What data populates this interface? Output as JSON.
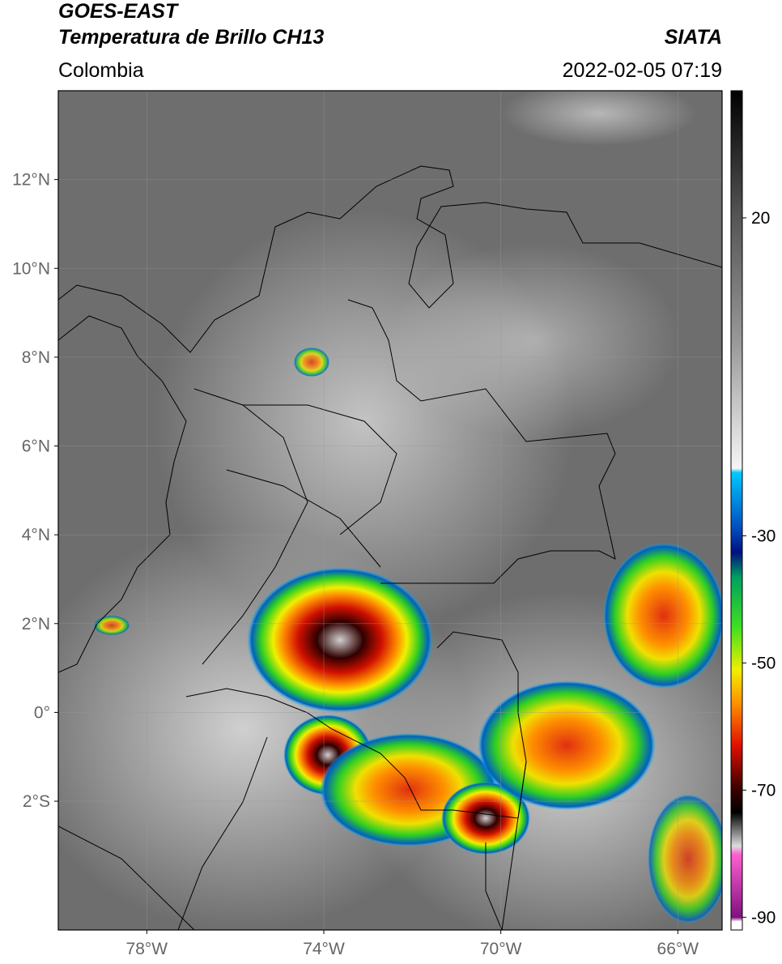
{
  "header": {
    "title": "GOES-EAST",
    "subtitle": "Temperatura de Brillo CH13",
    "region": "Colombia",
    "source": "SIATA",
    "datetime": "2022-02-05 07:19"
  },
  "map": {
    "lonlim": [
      -80,
      -65
    ],
    "latlim": [
      -4.9,
      14
    ],
    "lon_ticks": [
      {
        "value": -78,
        "label": "78°W"
      },
      {
        "value": -74,
        "label": "74°W"
      },
      {
        "value": -70,
        "label": "70°W"
      },
      {
        "value": -66,
        "label": "66°W"
      }
    ],
    "lat_ticks": [
      {
        "value": 12,
        "label": "12°N"
      },
      {
        "value": 10,
        "label": "10°N"
      },
      {
        "value": 8,
        "label": "8°N"
      },
      {
        "value": 6,
        "label": "6°N"
      },
      {
        "value": 4,
        "label": "4°N"
      },
      {
        "value": 2,
        "label": "2°N"
      },
      {
        "value": 0,
        "label": "0°"
      },
      {
        "value": -2,
        "label": "2°S"
      }
    ]
  },
  "colorbar": {
    "lim": [
      -92,
      40
    ],
    "ticks": [
      20,
      -30,
      -50,
      -70,
      -90
    ]
  }
}
